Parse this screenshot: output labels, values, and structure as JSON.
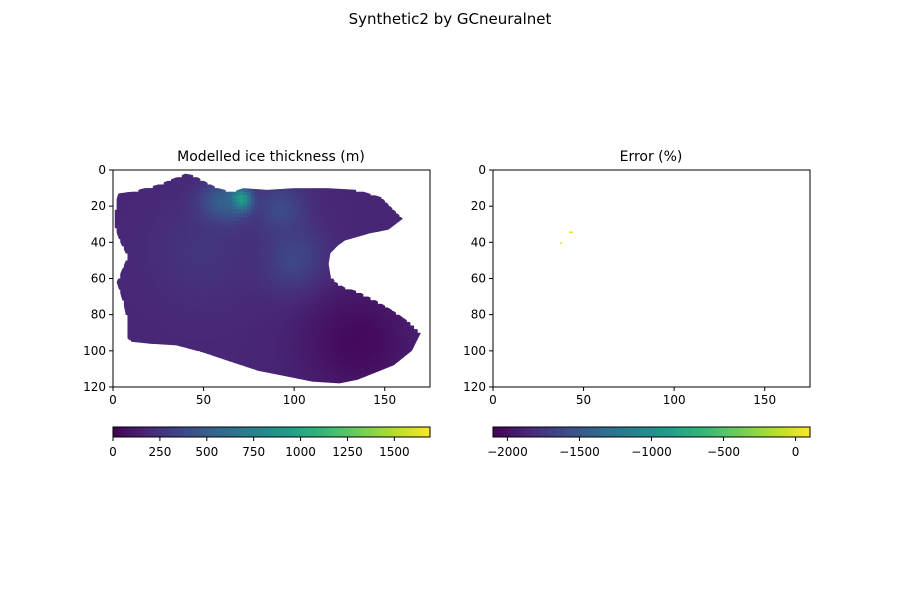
{
  "figure": {
    "suptitle": "Synthetic2 by GCneuralnet"
  },
  "viridis": [
    "#440154",
    "#482878",
    "#3e4989",
    "#31688e",
    "#26828e",
    "#1f9e89",
    "#35b779",
    "#6ece58",
    "#b5de2b",
    "#fde725"
  ],
  "chart_data": [
    {
      "type": "heatmap",
      "title": "Modelled ice thickness (m)",
      "xlabel": "",
      "ylabel": "",
      "xlim": [
        0,
        175
      ],
      "ylim": [
        120,
        0
      ],
      "y_inverted": true,
      "xticks": [
        0,
        50,
        100,
        150
      ],
      "yticks": [
        0,
        20,
        40,
        60,
        80,
        100,
        120
      ],
      "colormap": "viridis",
      "color_range": [
        0,
        1690
      ],
      "colorbar": {
        "orientation": "horizontal",
        "ticks": [
          0,
          250,
          500,
          750,
          1000,
          1250,
          1500
        ]
      },
      "glacier_outline": [
        [
          3,
          13
        ],
        [
          10,
          12
        ],
        [
          25,
          8
        ],
        [
          40,
          2
        ],
        [
          45,
          3
        ],
        [
          50,
          6
        ],
        [
          58,
          10
        ],
        [
          66,
          12
        ],
        [
          72,
          10
        ],
        [
          85,
          11
        ],
        [
          100,
          10
        ],
        [
          118,
          10
        ],
        [
          135,
          11
        ],
        [
          148,
          15
        ],
        [
          155,
          22
        ],
        [
          160,
          27
        ],
        [
          152,
          33
        ],
        [
          142,
          35
        ],
        [
          128,
          39
        ],
        [
          124,
          42
        ],
        [
          120,
          46
        ],
        [
          119,
          52
        ],
        [
          120,
          58
        ],
        [
          123,
          62
        ],
        [
          128,
          65
        ],
        [
          135,
          67
        ],
        [
          145,
          72
        ],
        [
          155,
          78
        ],
        [
          165,
          85
        ],
        [
          170,
          90
        ],
        [
          165,
          100
        ],
        [
          155,
          108
        ],
        [
          145,
          112
        ],
        [
          135,
          116
        ],
        [
          125,
          118
        ],
        [
          110,
          117
        ],
        [
          95,
          114
        ],
        [
          80,
          111
        ],
        [
          65,
          106
        ],
        [
          50,
          101
        ],
        [
          35,
          97
        ],
        [
          20,
          96
        ],
        [
          10,
          95
        ],
        [
          7,
          92
        ],
        [
          8,
          85
        ],
        [
          6,
          75
        ],
        [
          4,
          68
        ],
        [
          2,
          62
        ],
        [
          5,
          55
        ],
        [
          8,
          48
        ],
        [
          4,
          40
        ],
        [
          1,
          32
        ],
        [
          1,
          22
        ],
        [
          2,
          16
        ]
      ],
      "thickness_field": [
        {
          "x": 70,
          "y": 17,
          "value": 1650,
          "spread": 6
        },
        {
          "x": 60,
          "y": 20,
          "value": 700,
          "spread": 12
        },
        {
          "x": 92,
          "y": 22,
          "value": 400,
          "spread": 14
        },
        {
          "x": 100,
          "y": 50,
          "value": 380,
          "spread": 18
        },
        {
          "x": 50,
          "y": 45,
          "value": 260,
          "spread": 30
        },
        {
          "x": 135,
          "y": 95,
          "value": 40,
          "spread": 30
        }
      ],
      "base_value": 180
    },
    {
      "type": "heatmap",
      "title": "Error (%)",
      "xlabel": "",
      "ylabel": "",
      "xlim": [
        0,
        175
      ],
      "ylim": [
        120,
        0
      ],
      "y_inverted": true,
      "xticks": [
        0,
        50,
        100,
        150
      ],
      "yticks": [
        0,
        20,
        40,
        60,
        80,
        100,
        120
      ],
      "colormap": "viridis",
      "color_range": [
        -2100,
        100
      ],
      "colorbar": {
        "orientation": "horizontal",
        "ticks": [
          -2000,
          -1500,
          -1000,
          -500,
          0
        ]
      },
      "points": [
        {
          "x": 42,
          "y": 34,
          "value": 5
        },
        {
          "x": 43,
          "y": 34,
          "value": 5
        },
        {
          "x": 37,
          "y": 40,
          "value": 20
        }
      ]
    }
  ]
}
